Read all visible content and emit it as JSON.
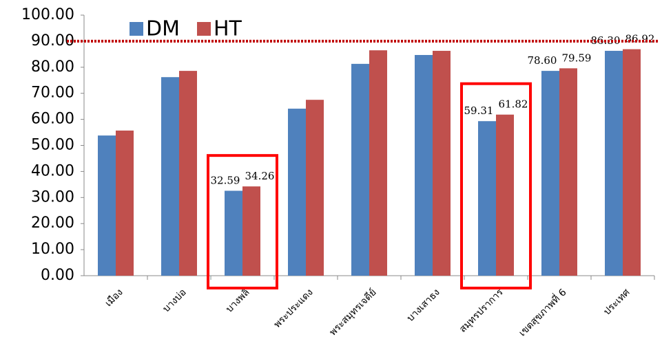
{
  "chart_data": {
    "type": "bar",
    "categories": [
      "เมือง",
      "บางบ่อ",
      "บางพลี",
      "พระประแดง",
      "พระสมุทรเจดีย์",
      "บางเสาธง",
      "สมุทรปราการ",
      "เขตสุขภาพที่ 6",
      "ประเทศ"
    ],
    "series": [
      {
        "name": "DM",
        "color": "#4f81bd",
        "values": [
          53.8,
          76.2,
          32.59,
          64.1,
          81.3,
          84.7,
          59.31,
          78.6,
          86.3
        ],
        "value_labels": [
          null,
          null,
          "32.59",
          null,
          null,
          null,
          "59.31",
          "78.60",
          "86.30"
        ]
      },
      {
        "name": "HT",
        "color": "#c0504d",
        "values": [
          55.7,
          78.6,
          34.26,
          67.5,
          86.5,
          86.3,
          61.82,
          79.59,
          86.92
        ],
        "value_labels": [
          null,
          null,
          "34.26",
          null,
          null,
          null,
          "61.82",
          "79.59",
          "86.92"
        ]
      }
    ],
    "ylim": [
      0,
      100
    ],
    "yticks": [
      {
        "value": 0,
        "label": "0.00"
      },
      {
        "value": 10,
        "label": "10.00"
      },
      {
        "value": 20,
        "label": "20.00"
      },
      {
        "value": 30,
        "label": "30.00"
      },
      {
        "value": 40,
        "label": "40.00"
      },
      {
        "value": 50,
        "label": "50.00"
      },
      {
        "value": 60,
        "label": "60.00"
      },
      {
        "value": 70,
        "label": "70.00"
      },
      {
        "value": 80,
        "label": "80.00"
      },
      {
        "value": 90,
        "label": "90.00"
      },
      {
        "value": 100,
        "label": "100.00"
      }
    ],
    "reference_line": {
      "value": 90,
      "color": "#c00000"
    },
    "highlight_categories": [
      "บางพลี",
      "สมุทรปราการ"
    ],
    "legend": "top-left"
  }
}
